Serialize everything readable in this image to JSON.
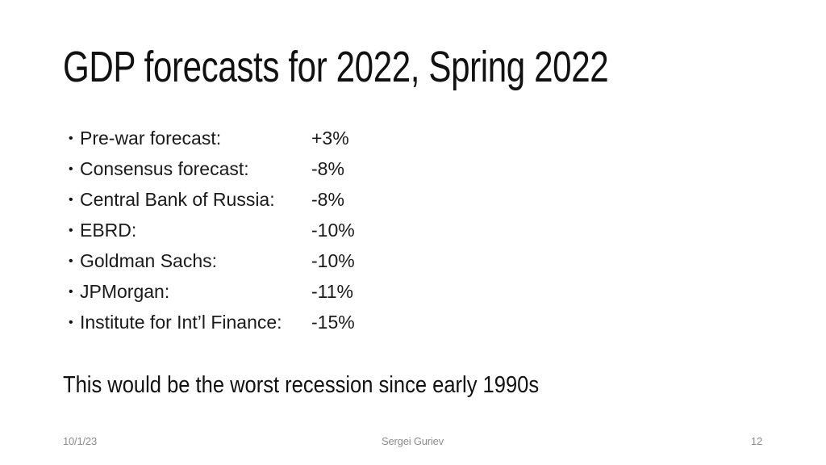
{
  "slide": {
    "title": "GDP forecasts for 2022, Spring 2022",
    "bullet_glyph": "•",
    "bullets": [
      {
        "label": "Pre-war forecast:",
        "value": "+3%"
      },
      {
        "label": "Consensus forecast:",
        "value": "-8%"
      },
      {
        "label": "Central Bank of Russia:",
        "value": "-8%"
      },
      {
        "label": "EBRD:",
        "value": "-10%"
      },
      {
        "label": "Goldman Sachs:",
        "value": "-10%"
      },
      {
        "label": "JPMorgan:",
        "value": "-11%"
      },
      {
        "label": "Institute for Int’l Finance:",
        "value": "-15%"
      }
    ],
    "conclusion": "This would be the worst recession since early 1990s",
    "footer": {
      "date": "10/1/23",
      "author": "Sergei Guriev",
      "page": "12"
    },
    "colors": {
      "background": "#ffffff",
      "text": "#111111",
      "footer_text": "#8c8c8c"
    }
  }
}
